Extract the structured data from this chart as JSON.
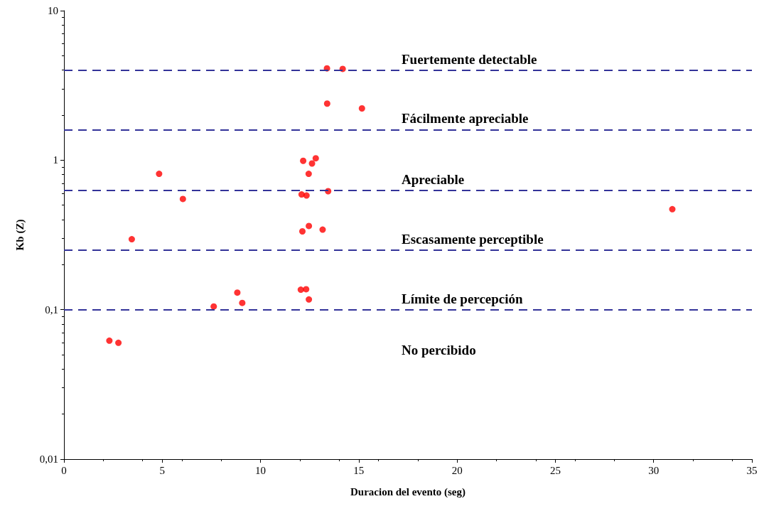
{
  "chart_data": {
    "type": "scatter",
    "xlabel": "Duracion del evento (seg)",
    "ylabel": "Kb (Z)",
    "series": [
      {
        "color": "#ff0000",
        "x": [
          13.38,
          14.18,
          13.39,
          15.16,
          12.17,
          12.81,
          12.62,
          12.45,
          4.84,
          12.09,
          12.34,
          13.44,
          6.05,
          12.46,
          12.13,
          13.16,
          3.45,
          12.05,
          12.32,
          12.46,
          8.82,
          9.07,
          7.62,
          2.31,
          2.77,
          30.95
        ],
        "values": [
          4.11,
          4.08,
          2.39,
          2.22,
          0.99,
          1.03,
          0.95,
          0.81,
          0.81,
          0.59,
          0.58,
          0.62,
          0.55,
          0.363,
          0.334,
          0.343,
          0.296,
          0.136,
          0.137,
          0.117,
          0.13,
          0.111,
          0.105,
          0.062,
          0.06,
          0.47
        ]
      }
    ],
    "xlim": [
      0,
      35
    ],
    "xticks": [
      0,
      5,
      10,
      15,
      20,
      25,
      30,
      35
    ],
    "ylim": [
      0.01,
      10
    ],
    "yticks": [
      {
        "value": 0.01,
        "label": "0,01"
      },
      {
        "value": 0.1,
        "label": "0,1"
      },
      1,
      10
    ],
    "log": "y",
    "grid": false,
    "marker": "circle",
    "ref_lines": [
      {
        "axis": "y",
        "value": 4,
        "label": "Fuertemente detectable",
        "color": "#333399",
        "line_style": "dashed"
      },
      {
        "axis": "y",
        "value": 1.6,
        "label": "Fácilmente apreciable",
        "color": "#333399",
        "line_style": "dashed"
      },
      {
        "axis": "y",
        "value": 0.63,
        "label": "Apreciable",
        "color": "#333399",
        "line_style": "dashed"
      },
      {
        "axis": "y",
        "value": 0.25,
        "label": "Escasamente perceptible",
        "color": "#333399",
        "line_style": "dashed"
      },
      {
        "axis": "y",
        "value": 0.1,
        "label": "Límite de percepción",
        "color": "#333399",
        "line_style": "dashed"
      }
    ],
    "annotations": [
      "No percibido"
    ]
  }
}
